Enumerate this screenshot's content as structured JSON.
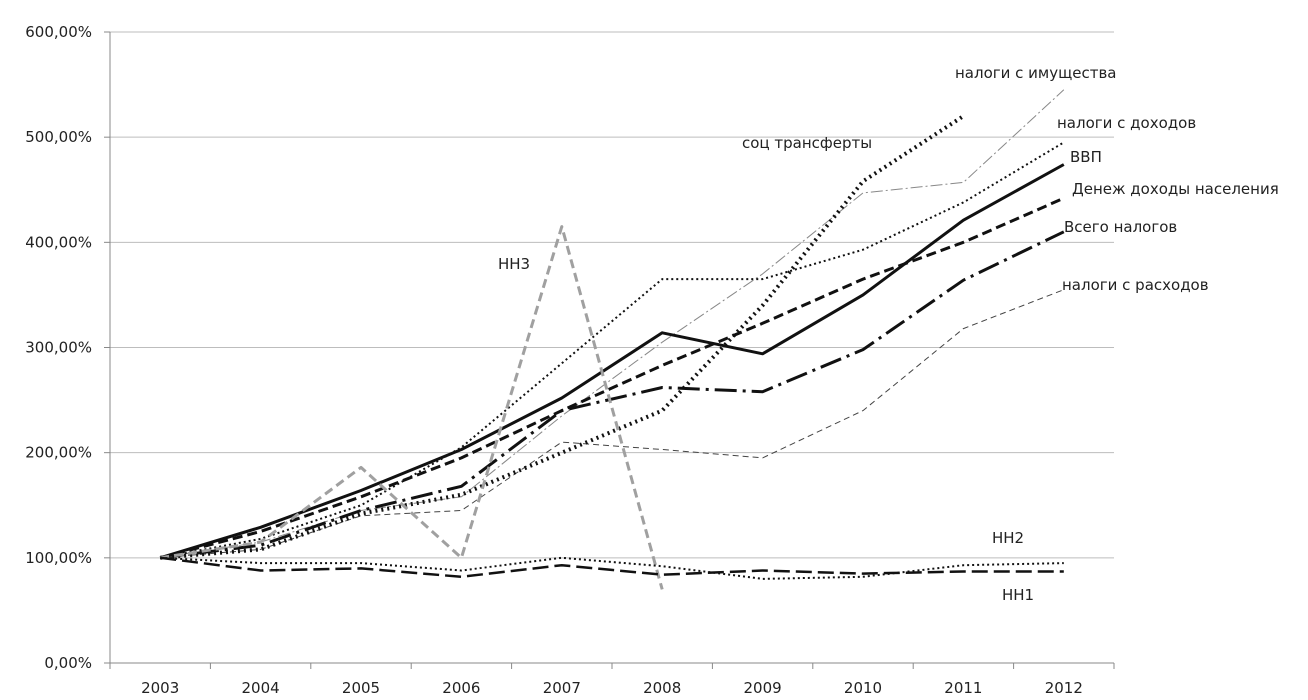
{
  "chart_data": {
    "type": "line",
    "categories": [
      "2003",
      "2004",
      "2005",
      "2006",
      "2007",
      "2008",
      "2009",
      "2010",
      "2011",
      "2012"
    ],
    "ylim": [
      0,
      600
    ],
    "yticks": [
      {
        "value": 0,
        "label": "0,00%"
      },
      {
        "value": 100,
        "label": "100,00%"
      },
      {
        "value": 200,
        "label": "200,00%"
      },
      {
        "value": 300,
        "label": "300,00%"
      },
      {
        "value": 400,
        "label": "400,00%"
      },
      {
        "value": 500,
        "label": "500,00%"
      },
      {
        "value": 600,
        "label": "600,00%"
      }
    ],
    "grid": true,
    "series": [
      {
        "name": "налоги с имущества",
        "color": "#888888",
        "dash": "12,3,2,3",
        "width": 1,
        "values": [
          100,
          115,
          145,
          158,
          235,
          305,
          370,
          447,
          457,
          545
        ]
      },
      {
        "name": "налоги с доходов",
        "color": "#111111",
        "dash": "2,3",
        "width": 2,
        "values": [
          100,
          118,
          150,
          205,
          285,
          365,
          365,
          393,
          438,
          495
        ]
      },
      {
        "name": "ВВП",
        "color": "#111111",
        "dash": "",
        "width": 3,
        "values": [
          100,
          129,
          164,
          203,
          252,
          314,
          294,
          350,
          421,
          474
        ]
      },
      {
        "name": "Денеж доходы населения",
        "color": "#111111",
        "dash": "10,5",
        "width": 3,
        "values": [
          100,
          125,
          158,
          195,
          240,
          283,
          323,
          365,
          400,
          442
        ]
      },
      {
        "name": "Всего налогов",
        "color": "#111111",
        "dash": "22,6,3,6",
        "width": 3,
        "values": [
          100,
          112,
          145,
          168,
          240,
          262,
          258,
          298,
          364,
          410
        ]
      },
      {
        "name": "налоги с расходов",
        "color": "#444444",
        "dash": "6,4",
        "width": 1,
        "values": [
          100,
          108,
          140,
          145,
          210,
          203,
          195,
          240,
          318,
          355
        ]
      },
      {
        "name": "соц трансферты",
        "color": "#111111",
        "dash": "2,4",
        "width": 4,
        "values": [
          100,
          108,
          142,
          160,
          200,
          240,
          340,
          458,
          520,
          null
        ]
      },
      {
        "name": "НН3",
        "color": "#a0a0a0",
        "dash": "9,5",
        "width": 3,
        "values": [
          100,
          115,
          186,
          100,
          415,
          70,
          null,
          null,
          null,
          null
        ]
      },
      {
        "name": "НН2",
        "color": "#111111",
        "dash": "2,3",
        "width": 2,
        "values": [
          100,
          95,
          95,
          88,
          100,
          92,
          80,
          82,
          93,
          95
        ]
      },
      {
        "name": "НН1",
        "color": "#111111",
        "dash": "16,6",
        "width": 2.5,
        "values": [
          100,
          88,
          90,
          82,
          93,
          84,
          88,
          85,
          87,
          87
        ]
      }
    ]
  }
}
